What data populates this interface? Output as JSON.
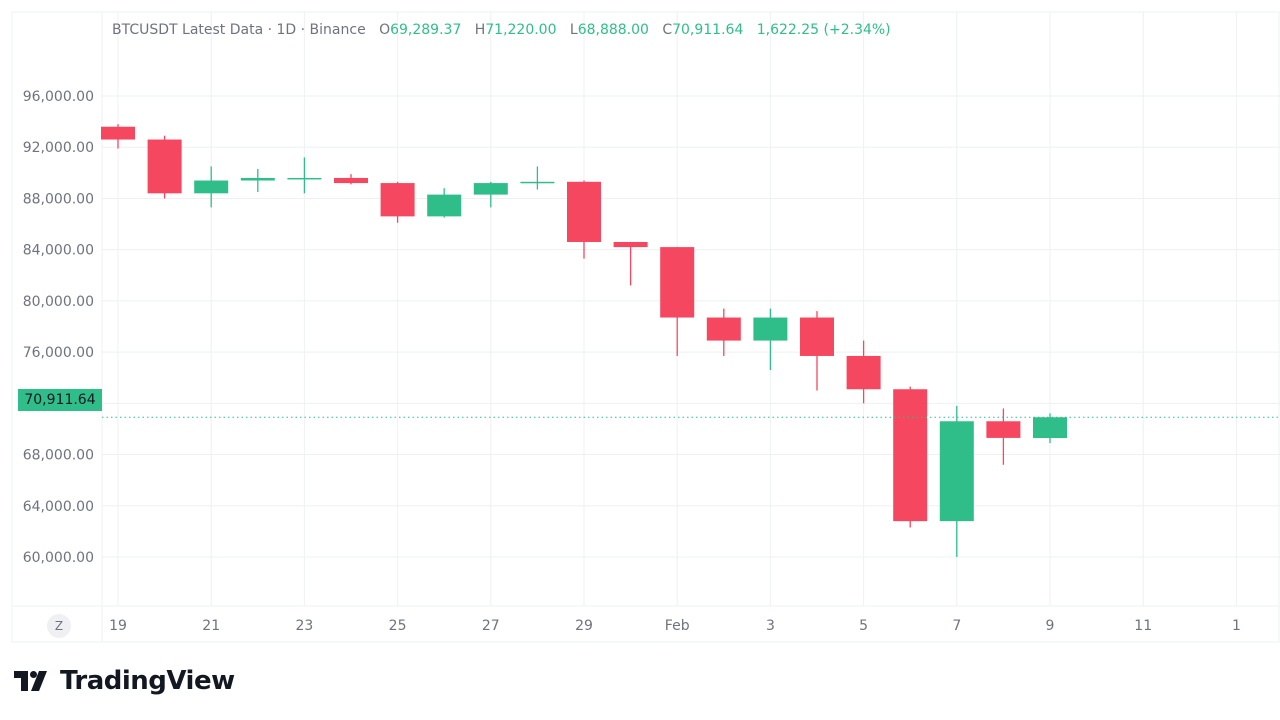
{
  "legend": {
    "title": "BTCUSDT Latest Data · 1D · Binance",
    "open_label": "O",
    "open": "69,289.37",
    "high_label": "H",
    "high": "71,220.00",
    "low_label": "L",
    "low": "68,888.00",
    "close_label": "C",
    "close": "70,911.64",
    "change": "1,622.25 (+2.34%)"
  },
  "price_tag": "70,911.64",
  "zoom_button": "Z",
  "brand": "TradingView",
  "colors": {
    "up": "#2fbe89",
    "down": "#f5475f",
    "grid": "#eef0f3",
    "text": "#6f7380"
  },
  "chart_data": {
    "type": "candlestick",
    "ylim": [
      57000,
      97500
    ],
    "y_ticks": [
      "96,000.00",
      "92,000.00",
      "88,000.00",
      "84,000.00",
      "80,000.00",
      "76,000.00",
      "72,000.00",
      "68,000.00",
      "64,000.00",
      "60,000.00"
    ],
    "x_ticks": [
      "19",
      "21",
      "23",
      "25",
      "27",
      "29",
      "Feb",
      "3",
      "5",
      "7",
      "9",
      "11",
      "1"
    ],
    "current_price": 70911.64,
    "candles": [
      {
        "date": "Jan 19",
        "open": 93600,
        "high": 93800,
        "low": 91900,
        "close": 92600
      },
      {
        "date": "Jan 20",
        "open": 92600,
        "high": 92900,
        "low": 88000,
        "close": 88400
      },
      {
        "date": "Jan 21",
        "open": 88400,
        "high": 90500,
        "low": 87300,
        "close": 89400
      },
      {
        "date": "Jan 22",
        "open": 89400,
        "high": 90300,
        "low": 88500,
        "close": 89600
      },
      {
        "date": "Jan 23",
        "open": 89500,
        "high": 91200,
        "low": 88400,
        "close": 89600
      },
      {
        "date": "Jan 24",
        "open": 89600,
        "high": 89900,
        "low": 89100,
        "close": 89200
      },
      {
        "date": "Jan 25",
        "open": 89200,
        "high": 89300,
        "low": 86100,
        "close": 86600
      },
      {
        "date": "Jan 26",
        "open": 86600,
        "high": 88800,
        "low": 86500,
        "close": 88300
      },
      {
        "date": "Jan 27",
        "open": 88300,
        "high": 89300,
        "low": 87300,
        "close": 89200
      },
      {
        "date": "Jan 28",
        "open": 89300,
        "high": 90500,
        "low": 88700,
        "close": 89300
      },
      {
        "date": "Jan 29",
        "open": 89300,
        "high": 89400,
        "low": 83300,
        "close": 84600
      },
      {
        "date": "Jan 30",
        "open": 84600,
        "high": 84600,
        "low": 81200,
        "close": 84200
      },
      {
        "date": "Jan 31",
        "open": 84200,
        "high": 84200,
        "low": 75700,
        "close": 78700
      },
      {
        "date": "Feb 1",
        "open": 78700,
        "high": 79400,
        "low": 75700,
        "close": 76900
      },
      {
        "date": "Feb 2",
        "open": 76900,
        "high": 79400,
        "low": 74600,
        "close": 78700
      },
      {
        "date": "Feb 3",
        "open": 78700,
        "high": 79200,
        "low": 73000,
        "close": 75700
      },
      {
        "date": "Feb 4",
        "open": 75700,
        "high": 76900,
        "low": 72000,
        "close": 73100
      },
      {
        "date": "Feb 5",
        "open": 73100,
        "high": 73300,
        "low": 62300,
        "close": 62800
      },
      {
        "date": "Feb 6",
        "open": 62800,
        "high": 71800,
        "low": 60000,
        "close": 70600
      },
      {
        "date": "Feb 7",
        "open": 70600,
        "high": 71600,
        "low": 67200,
        "close": 69300
      },
      {
        "date": "Feb 8",
        "open": 69289.37,
        "high": 71220,
        "low": 68888,
        "close": 70911.64
      }
    ]
  }
}
